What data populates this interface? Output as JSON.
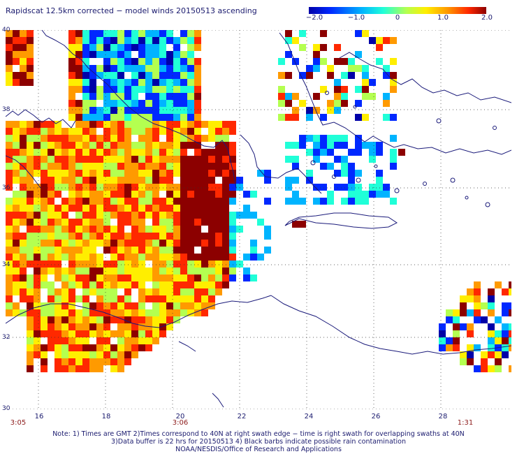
{
  "title": "Rapidscat 12.5km corrected − model winds 20150513 ascending",
  "colorbar": {
    "ticks": [
      "−2.0",
      "−1.0",
      "0",
      "1.0",
      "2.0"
    ],
    "stops": [
      "#0000a8",
      "#0028ff",
      "#00b4ff",
      "#20ffd8",
      "#b4ff50",
      "#ffee00",
      "#ff9a00",
      "#ff2800",
      "#8c0000"
    ]
  },
  "lat_labels": [
    "40",
    "38",
    "36",
    "34",
    "32",
    "30"
  ],
  "lon_labels": [
    "16",
    "18",
    "20",
    "22",
    "24",
    "26",
    "28"
  ],
  "times": [
    "3:05",
    "3:06",
    "1:31"
  ],
  "notes": [
    "Note: 1) Times are GMT 2)Times correspond to 40N at right swath edge − time is right swath for overlapping swaths at 40N",
    "3)Data buffer is 22 hrs for 20150513 4) Black barbs indicate possible rain contamination",
    "NOAA/NESDIS/Office of Research and Applications"
  ]
}
